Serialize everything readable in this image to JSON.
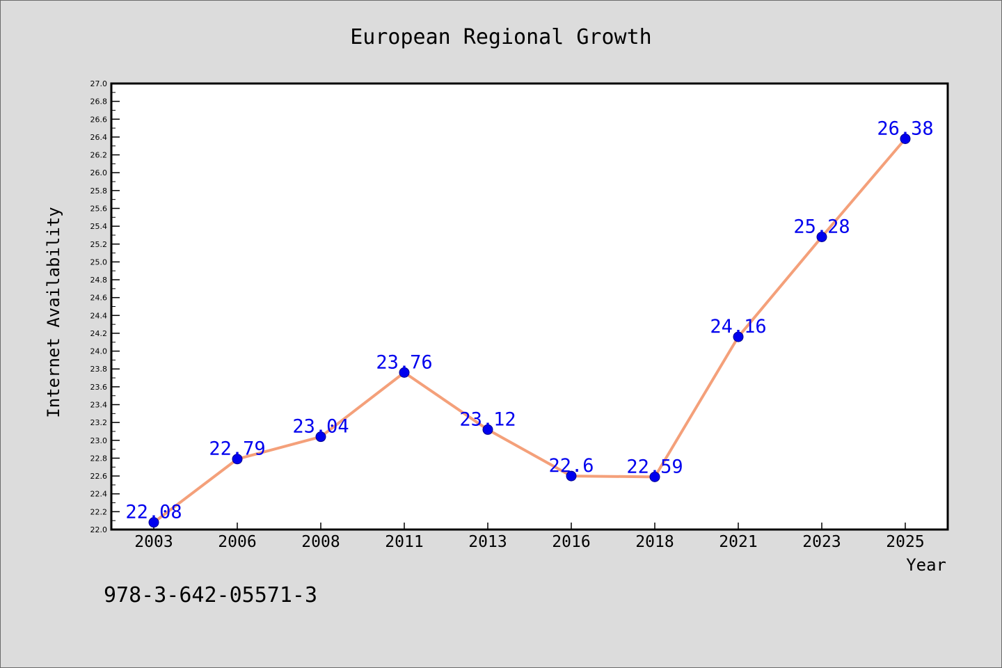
{
  "chart_data": {
    "type": "line",
    "title": "European Regional Growth",
    "xlabel": "Year",
    "ylabel": "Internet Availability",
    "categories": [
      "2003",
      "2006",
      "2008",
      "2011",
      "2013",
      "2016",
      "2018",
      "2021",
      "2023",
      "2025"
    ],
    "series": [
      {
        "values": [
          22.08,
          22.79,
          23.04,
          23.76,
          23.12,
          22.6,
          22.59,
          24.16,
          25.28,
          26.38
        ],
        "labels": [
          "22.08",
          "22.79",
          "23.04",
          "23.76",
          "23.12",
          "22.6",
          "22.59",
          "24.16",
          "25.28",
          "26.38"
        ]
      }
    ],
    "ylim": [
      22.0,
      27.0
    ],
    "yticks": [
      "22.0",
      "22.2",
      "22.4",
      "22.6",
      "22.8",
      "23.0",
      "23.2",
      "23.4",
      "23.6",
      "23.8",
      "24.0",
      "24.2",
      "24.4",
      "24.6",
      "24.8",
      "25.0",
      "25.2",
      "25.4",
      "25.6",
      "25.8",
      "26.0",
      "26.2",
      "26.4",
      "26.6",
      "26.8",
      "27.0"
    ],
    "grid": false,
    "legend": "none",
    "annotation": "978-3-642-05571-3",
    "colors": {
      "line": "#f4a07a",
      "marker": "#0000ee",
      "data_label": "#0000ee",
      "plot_background": "#ffffff",
      "figure_background": "#dcdcdc",
      "axis": "#000000"
    }
  }
}
